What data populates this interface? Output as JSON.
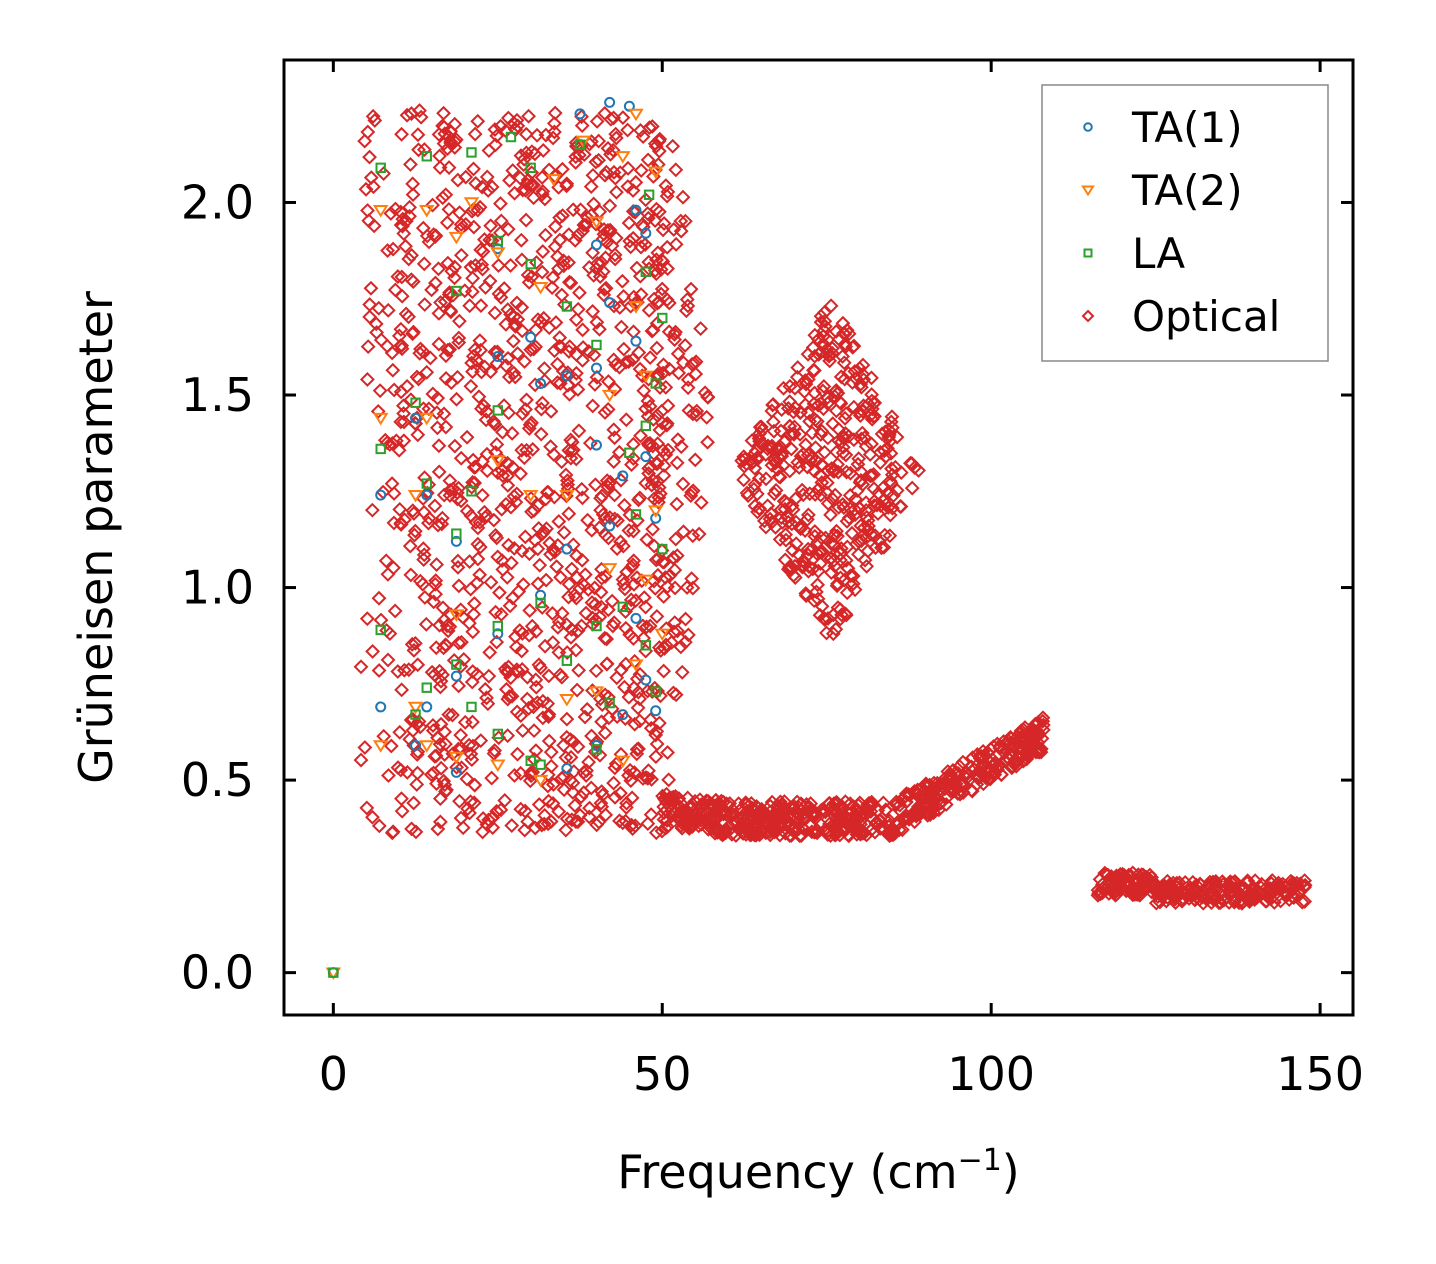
{
  "chart_data": {
    "type": "scatter",
    "title": "",
    "xlabel": "Frequency (cm",
    "xlabel_sup": "−1",
    "xlabel_suffix": ")",
    "ylabel": "Grüneisen parameter",
    "xlim": [
      -7.5,
      155
    ],
    "ylim": [
      -0.11,
      2.37
    ],
    "xticks": [
      0,
      50,
      100,
      150
    ],
    "xtick_labels": [
      "0",
      "50",
      "100",
      "150"
    ],
    "yticks": [
      0.0,
      0.5,
      1.0,
      1.5,
      2.0
    ],
    "ytick_labels": [
      "0.0",
      "0.5",
      "1.0",
      "1.5",
      "2.0"
    ],
    "grid": false,
    "legend_position": "top-right",
    "series": [
      {
        "name": "TA(1)",
        "color": "#1f77b4",
        "marker": "circle",
        "points": [
          [
            0,
            0
          ],
          [
            7.2,
            1.24
          ],
          [
            7.2,
            0.69
          ],
          [
            12.5,
            1.44
          ],
          [
            12.5,
            0.59
          ],
          [
            14.2,
            0.69
          ],
          [
            14.2,
            1.24
          ],
          [
            18.7,
            0.52
          ],
          [
            18.7,
            0.77
          ],
          [
            18.7,
            1.12
          ],
          [
            25,
            0.88
          ],
          [
            25,
            1.6
          ],
          [
            25,
            1.88
          ],
          [
            30,
            1.65
          ],
          [
            31.5,
            1.53
          ],
          [
            31.5,
            0.98
          ],
          [
            35.5,
            1.1
          ],
          [
            35.5,
            1.55
          ],
          [
            35.5,
            0.53
          ],
          [
            37.5,
            2.23
          ],
          [
            40,
            1.89
          ],
          [
            40,
            1.57
          ],
          [
            40,
            1.37
          ],
          [
            40,
            0.59
          ],
          [
            42,
            2.26
          ],
          [
            42,
            1.74
          ],
          [
            42,
            1.16
          ],
          [
            44,
            0.67
          ],
          [
            44,
            1.29
          ],
          [
            45,
            2.25
          ],
          [
            46,
            1.98
          ],
          [
            46,
            1.64
          ],
          [
            46,
            0.92
          ],
          [
            47.5,
            1.92
          ],
          [
            47.5,
            1.34
          ],
          [
            47.5,
            0.76
          ],
          [
            49,
            1.18
          ],
          [
            49,
            0.68
          ]
        ]
      },
      {
        "name": "TA(2)",
        "color": "#ff7f0e",
        "marker": "triangle-down",
        "points": [
          [
            0,
            0
          ],
          [
            7.2,
            1.44
          ],
          [
            7.2,
            0.59
          ],
          [
            7.2,
            1.98
          ],
          [
            12.5,
            1.24
          ],
          [
            12.5,
            0.69
          ],
          [
            14.2,
            0.59
          ],
          [
            14.2,
            1.98
          ],
          [
            14.2,
            1.44
          ],
          [
            18.7,
            0.93
          ],
          [
            18.7,
            1.91
          ],
          [
            18.7,
            0.56
          ],
          [
            21,
            2.0
          ],
          [
            25,
            0.54
          ],
          [
            25,
            1.33
          ],
          [
            25,
            1.87
          ],
          [
            30,
            1.24
          ],
          [
            31.5,
            0.5
          ],
          [
            31.5,
            1.78
          ],
          [
            33.5,
            2.06
          ],
          [
            35.5,
            1.24
          ],
          [
            35.5,
            0.71
          ],
          [
            38,
            2.16
          ],
          [
            40,
            0.73
          ],
          [
            40,
            1.95
          ],
          [
            42,
            1.5
          ],
          [
            42,
            1.05
          ],
          [
            44,
            2.12
          ],
          [
            44,
            0.55
          ],
          [
            46,
            2.23
          ],
          [
            46,
            1.73
          ],
          [
            46,
            0.8
          ],
          [
            47.5,
            1.55
          ],
          [
            47.5,
            1.02
          ],
          [
            49,
            2.08
          ],
          [
            49,
            1.2
          ],
          [
            50,
            0.88
          ]
        ]
      },
      {
        "name": "LA",
        "color": "#2ca02c",
        "marker": "square",
        "points": [
          [
            0,
            0
          ],
          [
            7.2,
            2.09
          ],
          [
            7.2,
            1.36
          ],
          [
            7.2,
            0.89
          ],
          [
            12.5,
            1.48
          ],
          [
            12.5,
            0.67
          ],
          [
            14.2,
            2.12
          ],
          [
            14.2,
            1.27
          ],
          [
            14.2,
            0.74
          ],
          [
            18.7,
            1.77
          ],
          [
            18.7,
            0.8
          ],
          [
            18.7,
            1.14
          ],
          [
            21,
            2.13
          ],
          [
            21,
            1.25
          ],
          [
            21,
            0.69
          ],
          [
            25,
            1.9
          ],
          [
            25,
            1.46
          ],
          [
            25,
            0.9
          ],
          [
            25,
            0.62
          ],
          [
            27,
            2.17
          ],
          [
            30,
            2.09
          ],
          [
            30,
            1.84
          ],
          [
            30,
            0.55
          ],
          [
            31.5,
            0.96
          ],
          [
            31.5,
            0.54
          ],
          [
            35.5,
            1.73
          ],
          [
            35.5,
            0.81
          ],
          [
            37.5,
            2.15
          ],
          [
            40,
            1.63
          ],
          [
            40,
            0.9
          ],
          [
            40,
            0.58
          ],
          [
            42,
            0.7
          ],
          [
            44,
            0.95
          ],
          [
            45,
            1.35
          ],
          [
            46,
            1.19
          ],
          [
            47.5,
            1.82
          ],
          [
            47.5,
            1.42
          ],
          [
            47.5,
            0.85
          ],
          [
            48,
            2.02
          ],
          [
            49,
            1.53
          ],
          [
            49,
            0.73
          ],
          [
            50,
            1.7
          ],
          [
            50,
            1.1
          ]
        ]
      },
      {
        "name": "Optical",
        "color": "#d62728",
        "marker": "diamond",
        "points": []
      }
    ],
    "optical_regions": [
      {
        "type": "box",
        "x": [
          4,
          51
        ],
        "y": [
          0.36,
          2.24
        ],
        "count": 1300
      },
      {
        "type": "diamond",
        "cx": 52,
        "cy": 1.42,
        "hw": 5.5,
        "hh": 0.85,
        "count": 200
      },
      {
        "type": "diamond",
        "cx": 75.5,
        "cy": 1.3,
        "hw": 14.5,
        "hh": 0.45,
        "count": 900
      },
      {
        "type": "band",
        "x": [
          50,
          108
        ],
        "y0": 0.4,
        "curve": "rising",
        "count": 650
      },
      {
        "type": "band",
        "x": [
          116,
          148
        ],
        "y0": 0.21,
        "curve": "flat",
        "count": 280
      }
    ]
  }
}
